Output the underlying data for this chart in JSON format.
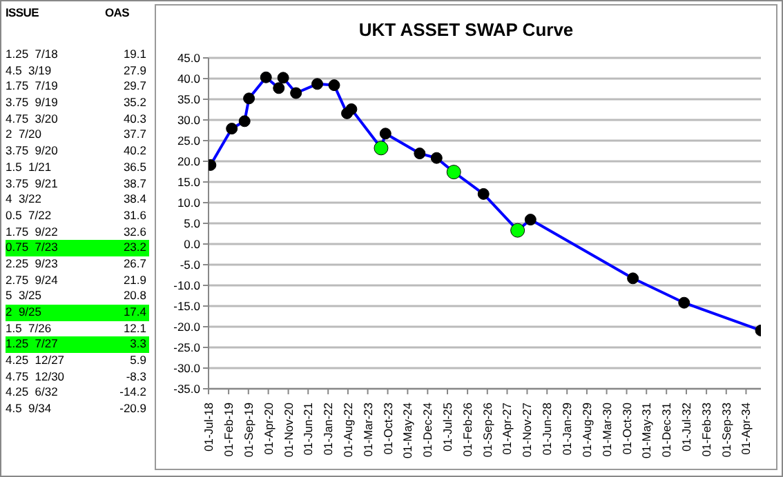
{
  "chart_data": [
    {
      "type": "other",
      "annotations": [
        "ISSUE",
        "OAS"
      ],
      "categories": [
        "1.25  7/18",
        "4.5  3/19",
        "1.75  7/19",
        "3.75  9/19",
        "4.75  3/20",
        "2  7/20",
        "3.75  9/20",
        "1.5  1/21",
        "3.75  9/21",
        "4  3/22",
        "0.5  7/22",
        "1.75  9/22",
        "0.75  7/23",
        "2.25  9/23",
        "2.75  9/24",
        "5  3/25",
        "2  9/25",
        "1.5  7/26",
        "1.25  7/27",
        "4.25  12/27",
        "4.75  12/30",
        "4.25  6/32",
        "4.5  9/34"
      ],
      "values": [
        19.1,
        27.9,
        29.7,
        35.2,
        40.3,
        37.7,
        40.2,
        36.5,
        38.7,
        38.4,
        31.6,
        32.6,
        23.2,
        26.7,
        21.9,
        20.8,
        17.4,
        12.1,
        3.3,
        5.9,
        -8.3,
        -14.2,
        -20.9
      ],
      "colors": [
        "#ffffff",
        "#ffffff",
        "#ffffff",
        "#ffffff",
        "#ffffff",
        "#ffffff",
        "#ffffff",
        "#ffffff",
        "#ffffff",
        "#ffffff",
        "#ffffff",
        "#ffffff",
        "#00ff00",
        "#ffffff",
        "#ffffff",
        "#ffffff",
        "#00ff00",
        "#ffffff",
        "#00ff00",
        "#ffffff",
        "#ffffff",
        "#ffffff",
        "#ffffff"
      ],
      "data_labels": true
    },
    {
      "type": "line",
      "title": "UKT ASSET SWAP Curve",
      "series": [
        {
          "color": "#0000ff",
          "x": [
            "2018-07-22",
            "2019-03-07",
            "2019-07-22",
            "2019-09-07",
            "2020-03-07",
            "2020-07-22",
            "2020-09-07",
            "2021-01-22",
            "2021-09-07",
            "2022-03-07",
            "2022-07-22",
            "2022-09-07",
            "2023-07-22",
            "2023-09-07",
            "2024-09-07",
            "2025-03-07",
            "2025-09-07",
            "2026-07-22",
            "2027-07-22",
            "2027-12-07",
            "2030-12-07",
            "2032-06-07",
            "2034-09-07"
          ],
          "values": [
            19.1,
            27.9,
            29.7,
            35.2,
            40.3,
            37.7,
            40.2,
            36.5,
            38.7,
            38.4,
            31.6,
            32.6,
            23.2,
            26.7,
            21.9,
            20.8,
            17.4,
            12.1,
            3.3,
            5.9,
            -8.3,
            -14.2,
            -20.9
          ],
          "colors": [
            "#000000",
            "#000000",
            "#000000",
            "#000000",
            "#000000",
            "#000000",
            "#000000",
            "#000000",
            "#000000",
            "#000000",
            "#000000",
            "#000000",
            "#00ff00",
            "#000000",
            "#000000",
            "#000000",
            "#00ff00",
            "#000000",
            "#00ff00",
            "#000000",
            "#000000",
            "#000000",
            "#000000"
          ]
        }
      ],
      "marker": "circle",
      "line_style": "solid",
      "grid": "y",
      "xlim": [
        "2018-07-01",
        "2034-09-07"
      ],
      "xticks": [
        {
          "value": "2018-07-01",
          "label": "01-Jul-18"
        },
        {
          "value": "2019-02-01",
          "label": "01-Feb-19"
        },
        {
          "value": "2019-09-01",
          "label": "01-Sep-19"
        },
        {
          "value": "2020-04-01",
          "label": "01-Apr-20"
        },
        {
          "value": "2020-11-01",
          "label": "01-Nov-20"
        },
        {
          "value": "2021-06-01",
          "label": "01-Jun-21"
        },
        {
          "value": "2022-01-01",
          "label": "01-Jan-22"
        },
        {
          "value": "2022-08-01",
          "label": "01-Aug-22"
        },
        {
          "value": "2023-03-01",
          "label": "01-Mar-23"
        },
        {
          "value": "2023-10-01",
          "label": "01-Oct-23"
        },
        {
          "value": "2024-05-01",
          "label": "01-May-24"
        },
        {
          "value": "2024-12-01",
          "label": "01-Dec-24"
        },
        {
          "value": "2025-07-01",
          "label": "01-Jul-25"
        },
        {
          "value": "2026-02-01",
          "label": "01-Feb-26"
        },
        {
          "value": "2026-09-01",
          "label": "01-Sep-26"
        },
        {
          "value": "2027-04-01",
          "label": "01-Apr-27"
        },
        {
          "value": "2027-11-01",
          "label": "01-Nov-27"
        },
        {
          "value": "2028-06-01",
          "label": "01-Jun-28"
        },
        {
          "value": "2029-01-01",
          "label": "01-Jan-29"
        },
        {
          "value": "2029-08-01",
          "label": "01-Aug-29"
        },
        {
          "value": "2030-03-01",
          "label": "01-Mar-30"
        },
        {
          "value": "2030-10-01",
          "label": "01-Oct-30"
        },
        {
          "value": "2031-05-01",
          "label": "01-May-31"
        },
        {
          "value": "2031-12-01",
          "label": "01-Dec-31"
        },
        {
          "value": "2032-07-01",
          "label": "01-Jul-32"
        },
        {
          "value": "2033-02-01",
          "label": "01-Feb-33"
        },
        {
          "value": "2033-09-01",
          "label": "01-Sep-33"
        },
        {
          "value": "2034-04-01",
          "label": "01-Apr-34"
        }
      ],
      "ylim": [
        -35,
        45
      ],
      "yticks": [
        {
          "value": -35,
          "label": "-35.0"
        },
        {
          "value": -30,
          "label": "-30.0"
        },
        {
          "value": -25,
          "label": "-25.0"
        },
        {
          "value": -20,
          "label": "-20.0"
        },
        {
          "value": -15,
          "label": "-15.0"
        },
        {
          "value": -10,
          "label": "-10.0"
        },
        {
          "value": -5,
          "label": "-5.0"
        },
        {
          "value": 0,
          "label": "0.0"
        },
        {
          "value": 5,
          "label": "5.0"
        },
        {
          "value": 10,
          "label": "10.0"
        },
        {
          "value": 15,
          "label": "15.0"
        },
        {
          "value": 20,
          "label": "20.0"
        },
        {
          "value": 25,
          "label": "25.0"
        },
        {
          "value": 30,
          "label": "30.0"
        },
        {
          "value": 35,
          "label": "35.0"
        },
        {
          "value": 40,
          "label": "40.0"
        },
        {
          "value": 45,
          "label": "45.0"
        }
      ]
    }
  ]
}
